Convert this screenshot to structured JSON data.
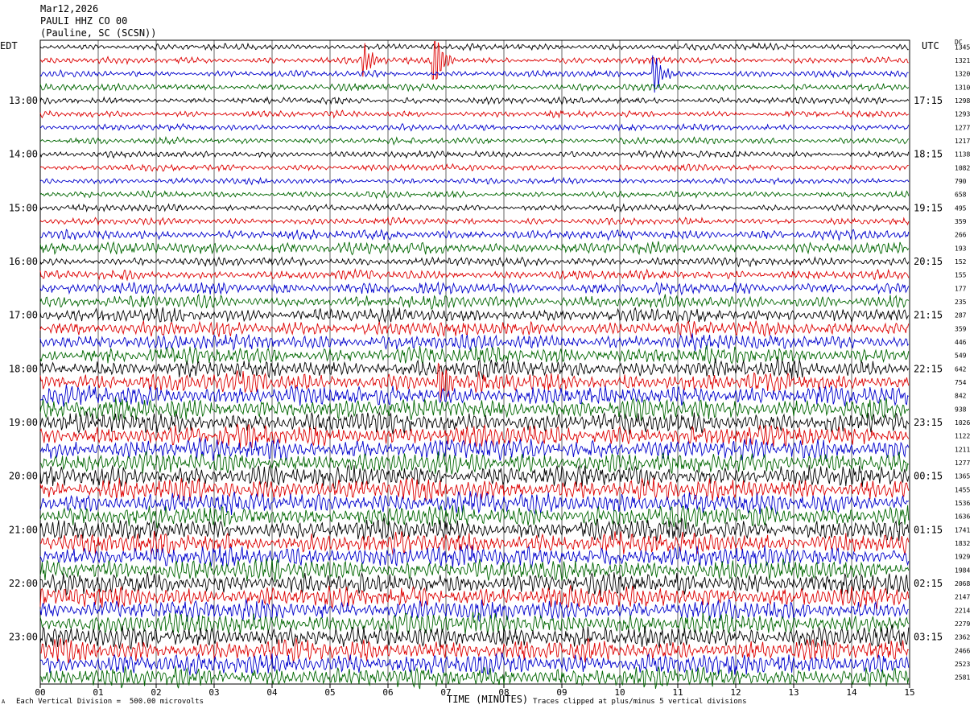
{
  "header": {
    "date": "Mar12,2026",
    "station": "PAULI HHZ CO 00",
    "location": "(Pauline, SC (SCSN))"
  },
  "tz_left": "EDT",
  "tz_right": "UTC",
  "dc_label": "DC",
  "footer": {
    "scale": "Each Vertical Division =  500.00 microvolts",
    "clip": "Traces clipped at plus/minus 5 vertical divisions",
    "corner_mark": "A"
  },
  "chart_data": {
    "type": "line",
    "title": "",
    "xlabel": "TIME (MINUTES)",
    "x_ticks": [
      "00",
      "01",
      "02",
      "03",
      "04",
      "05",
      "06",
      "07",
      "08",
      "09",
      "10",
      "11",
      "12",
      "13",
      "14",
      "15"
    ],
    "xlim": [
      0,
      15
    ],
    "trace_colors": [
      "#000000",
      "#dd0000",
      "#0000cc",
      "#006600"
    ],
    "left_hour_labels": [
      "13:00",
      "14:00",
      "15:00",
      "16:00",
      "17:00",
      "18:00",
      "19:00",
      "20:00",
      "21:00",
      "22:00",
      "23:00"
    ],
    "right_hour_labels": [
      "17:15",
      "18:15",
      "19:15",
      "20:15",
      "21:15",
      "22:15",
      "23:15",
      "00:15",
      "01:15",
      "02:15",
      "03:15"
    ],
    "first_hour_label_row": 4,
    "dc_offsets": [
      1345,
      1321,
      1320,
      1310,
      1298,
      1293,
      1277,
      1217,
      1138,
      1082,
      790,
      658,
      495,
      359,
      266,
      193,
      152,
      155,
      177,
      235,
      287,
      359,
      446,
      549,
      642,
      754,
      842,
      938,
      1026,
      1122,
      1211,
      1277,
      1365,
      1455,
      1536,
      1636,
      1741,
      1832,
      1929,
      1984,
      2068,
      2147,
      2214,
      2279,
      2362,
      2466,
      2523,
      2581
    ],
    "relative_amplitude": [
      0.3,
      0.3,
      0.3,
      0.32,
      0.32,
      0.3,
      0.3,
      0.3,
      0.32,
      0.3,
      0.28,
      0.3,
      0.32,
      0.32,
      0.45,
      0.55,
      0.42,
      0.45,
      0.55,
      0.6,
      0.65,
      0.7,
      0.75,
      0.8,
      0.85,
      0.9,
      0.95,
      1.0,
      1.0,
      1.0,
      1.0,
      1.0,
      1.0,
      1.0,
      1.0,
      1.0,
      1.0,
      1.0,
      1.0,
      1.0,
      1.0,
      1.0,
      1.0,
      1.0,
      1.0,
      1.0,
      1.0,
      1.0
    ],
    "events": [
      {
        "row": 1,
        "minute": 5.6,
        "amplitude": 2.0
      },
      {
        "row": 1,
        "minute": 6.8,
        "amplitude": 4.5
      },
      {
        "row": 2,
        "minute": 10.6,
        "amplitude": 2.5
      },
      {
        "row": 25,
        "minute": 6.9,
        "amplitude": 3.0
      }
    ]
  }
}
